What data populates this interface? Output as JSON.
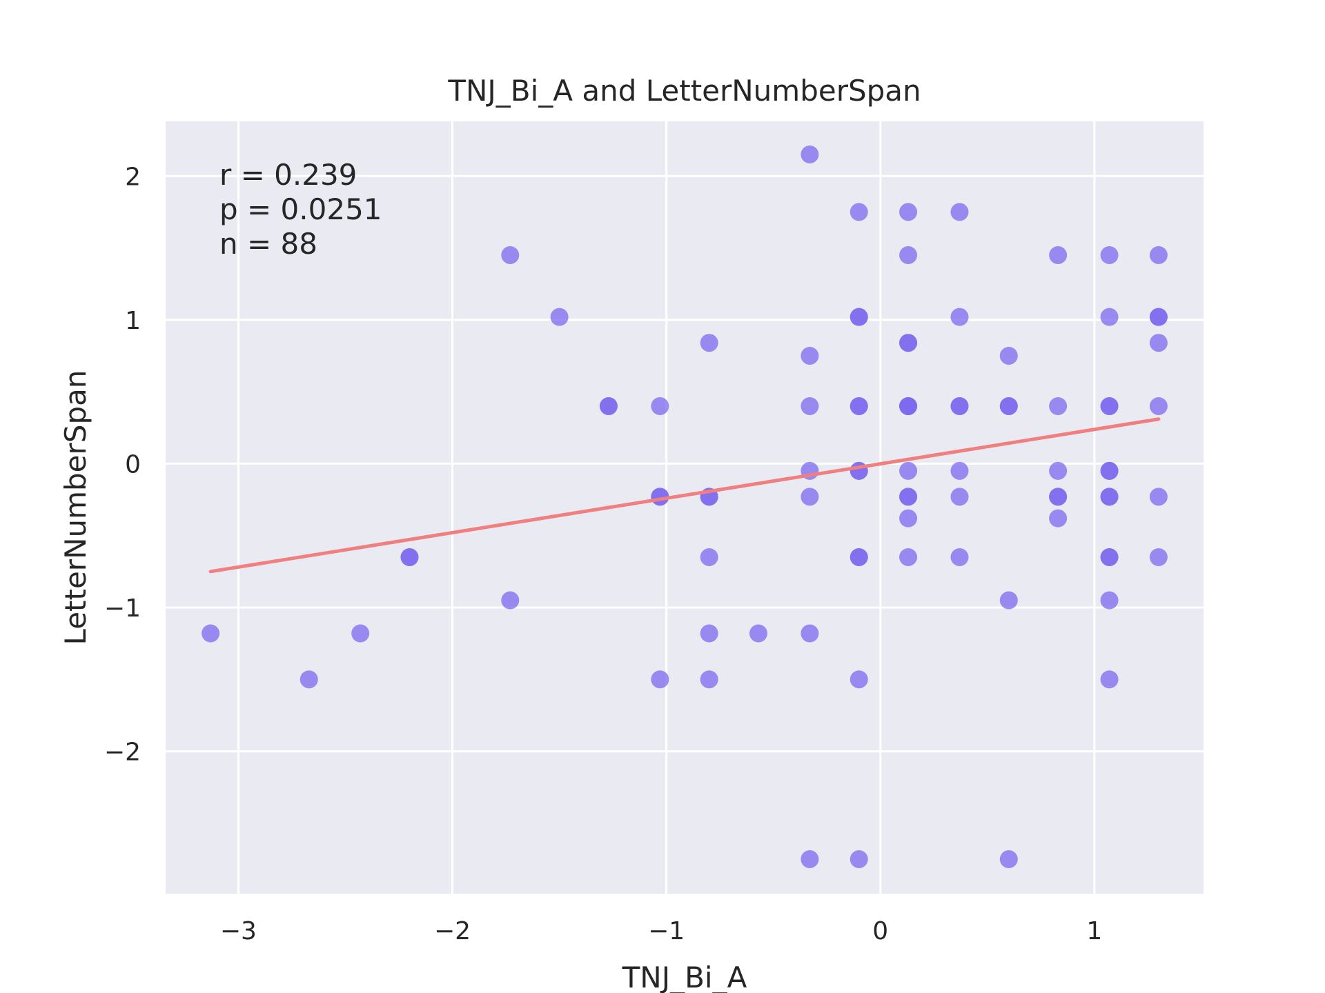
{
  "chart_data": {
    "type": "scatter",
    "title": "TNJ_Bi_A and LetterNumberSpan",
    "xlabel": "TNJ_Bi_A",
    "ylabel": "LetterNumberSpan",
    "xlim": [
      -3.34,
      1.51
    ],
    "ylim": [
      -2.99,
      2.38
    ],
    "xticks": [
      -3,
      -2,
      -1,
      0,
      1
    ],
    "yticks": [
      -2,
      -1,
      0,
      1,
      2
    ],
    "xtick_labels": [
      "−3",
      "−2",
      "−1",
      "0",
      "1"
    ],
    "ytick_labels": [
      "−2",
      "−1",
      "0",
      "1",
      "2"
    ],
    "grid": true,
    "background": "#eaeaf2",
    "point_color": "#7b68ee",
    "line_color": "#f08080",
    "annotations": [
      "r = 0.239",
      "p = 0.0251",
      "n = 88"
    ],
    "regression": {
      "x": [
        -3.13,
        1.3
      ],
      "y": [
        -0.75,
        0.31
      ]
    },
    "x": [
      -3.13,
      -2.67,
      -2.43,
      -2.2,
      -2.2,
      -1.73,
      -1.73,
      -1.5,
      -1.27,
      -1.27,
      -1.03,
      -1.03,
      -1.03,
      -1.03,
      -0.8,
      -0.8,
      -0.8,
      -0.8,
      -0.8,
      -0.8,
      -0.57,
      -0.33,
      -0.33,
      -0.33,
      -0.33,
      -0.33,
      -0.33,
      -0.33,
      -0.1,
      -0.1,
      -0.1,
      -0.1,
      -0.1,
      -0.1,
      -0.1,
      -0.1,
      -0.1,
      -0.1,
      -0.1,
      0.13,
      0.13,
      0.13,
      0.13,
      0.13,
      0.13,
      0.13,
      0.13,
      0.13,
      0.13,
      0.13,
      0.13,
      0.37,
      0.37,
      0.37,
      0.37,
      0.37,
      0.37,
      0.37,
      0.6,
      0.6,
      0.6,
      0.6,
      0.6,
      0.83,
      0.83,
      0.83,
      0.83,
      0.83,
      0.83,
      1.07,
      1.07,
      1.07,
      1.07,
      1.07,
      1.07,
      1.07,
      1.07,
      1.07,
      1.07,
      1.07,
      1.07,
      1.3,
      1.3,
      1.3,
      1.3,
      1.3,
      1.3,
      1.3
    ],
    "y": [
      -1.18,
      -1.5,
      -1.18,
      -0.65,
      -0.65,
      1.45,
      -0.95,
      1.02,
      0.4,
      0.4,
      0.4,
      -0.23,
      -0.23,
      -1.5,
      0.84,
      -0.23,
      -0.23,
      -0.65,
      -1.18,
      -1.5,
      -1.18,
      2.15,
      0.75,
      0.4,
      -0.05,
      -0.23,
      -1.18,
      -2.75,
      1.75,
      1.02,
      1.02,
      0.4,
      0.4,
      -0.05,
      -0.65,
      -0.65,
      -1.5,
      -2.75,
      -0.05,
      1.75,
      1.45,
      0.84,
      0.84,
      0.4,
      0.4,
      -0.05,
      -0.23,
      -0.23,
      -0.38,
      -0.65,
      0.4,
      1.75,
      1.02,
      0.4,
      0.4,
      -0.05,
      -0.23,
      -0.65,
      0.75,
      0.4,
      0.4,
      -0.95,
      -2.75,
      1.45,
      0.4,
      -0.05,
      -0.23,
      -0.38,
      -0.23,
      1.45,
      1.02,
      0.4,
      0.4,
      -0.05,
      -0.05,
      -0.23,
      -0.65,
      -0.65,
      -0.95,
      -1.5,
      -0.23,
      1.45,
      1.02,
      1.02,
      0.84,
      0.4,
      -0.23,
      -0.65
    ]
  }
}
